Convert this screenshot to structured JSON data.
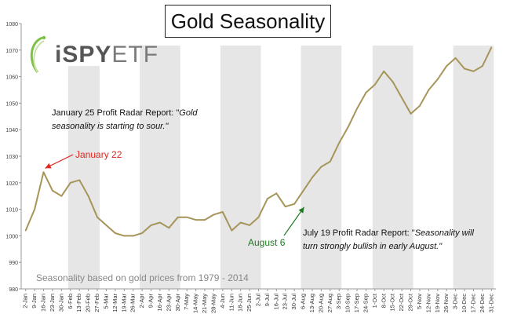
{
  "chart_data": {
    "type": "line",
    "title": "Gold Seasonality",
    "ylim": [
      980,
      1080
    ],
    "yticks": [
      980,
      990,
      1000,
      1010,
      1020,
      1030,
      1040,
      1050,
      1060,
      1070,
      1080
    ],
    "grid": false,
    "categories": [
      "2-Jan",
      "9-Jan",
      "16-Jan",
      "23-Jan",
      "30-Jan",
      "6-Feb",
      "13-Feb",
      "20-Feb",
      "27-Feb",
      "5-Mar",
      "12-Mar",
      "19-Mar",
      "26-Mar",
      "2-Apr",
      "9-Apr",
      "16-Apr",
      "23-Apr",
      "30-Apr",
      "7-May",
      "14-May",
      "21-May",
      "28-May",
      "4-Jun",
      "11-Jun",
      "18-Jun",
      "25-Jun",
      "2-Jul",
      "9-Jul",
      "16-Jul",
      "23-Jul",
      "30-Jul",
      "6-Aug",
      "13-Aug",
      "20-Aug",
      "27-Aug",
      "3-Sep",
      "10-Sep",
      "17-Sep",
      "24-Sep",
      "1-Oct",
      "8-Oct",
      "15-Oct",
      "22-Oct",
      "29-Oct",
      "5-Nov",
      "12-Nov",
      "19-Nov",
      "26-Nov",
      "3-Dec",
      "10-Dec",
      "17-Dec",
      "24-Dec",
      "31-Dec"
    ],
    "series": [
      {
        "color": "#a69559",
        "values": [
          1002,
          1010,
          1024,
          1017,
          1015,
          1020,
          1021,
          1015,
          1007,
          1004,
          1001,
          1000,
          1000,
          1001,
          1004,
          1005,
          1003,
          1007,
          1007,
          1006,
          1006,
          1008,
          1009,
          1002,
          1005,
          1004,
          1007,
          1014,
          1016,
          1011,
          1012,
          1017,
          1022,
          1026,
          1028,
          1035,
          1041,
          1048,
          1054,
          1057,
          1062,
          1058,
          1052,
          1046,
          1049,
          1055,
          1059,
          1064,
          1067,
          1063,
          1062,
          1064,
          1071
        ]
      }
    ],
    "shaded_weeks": [
      [
        "6-Feb",
        "27-Feb"
      ],
      [
        "2-Apr",
        "30-Apr"
      ],
      [
        "4-Jun",
        "2-Jul"
      ],
      [
        "6-Aug",
        "3-Sep"
      ],
      [
        "1-Oct",
        "29-Oct"
      ],
      [
        "3-Dec",
        "31-Dec"
      ]
    ]
  },
  "logo": {
    "i": "i",
    "spy": "SPY",
    "etf": "ETF"
  },
  "annotations": {
    "jan_report_line1_plain": "January 25 Profit Radar Report: \"",
    "jan_report_line1_italic": "Gold",
    "jan_report_line2_italic": "seasonality is starting to sour.\"",
    "jan_label": "January 22",
    "aug_label": "August 6",
    "jul_report_line1_plain": "July 19 Profit Radar Report: \"",
    "jul_report_line1_italic": "Seasonality will",
    "jul_report_line2_italic": "turn strongly bullish in early August.\""
  },
  "footnote": "Seasonality based on gold prices from 1979 - 2014",
  "colors": {
    "line": "#a69559",
    "shade": "#e6e6e6",
    "red": "#e0261d",
    "green": "#1e7a22"
  }
}
